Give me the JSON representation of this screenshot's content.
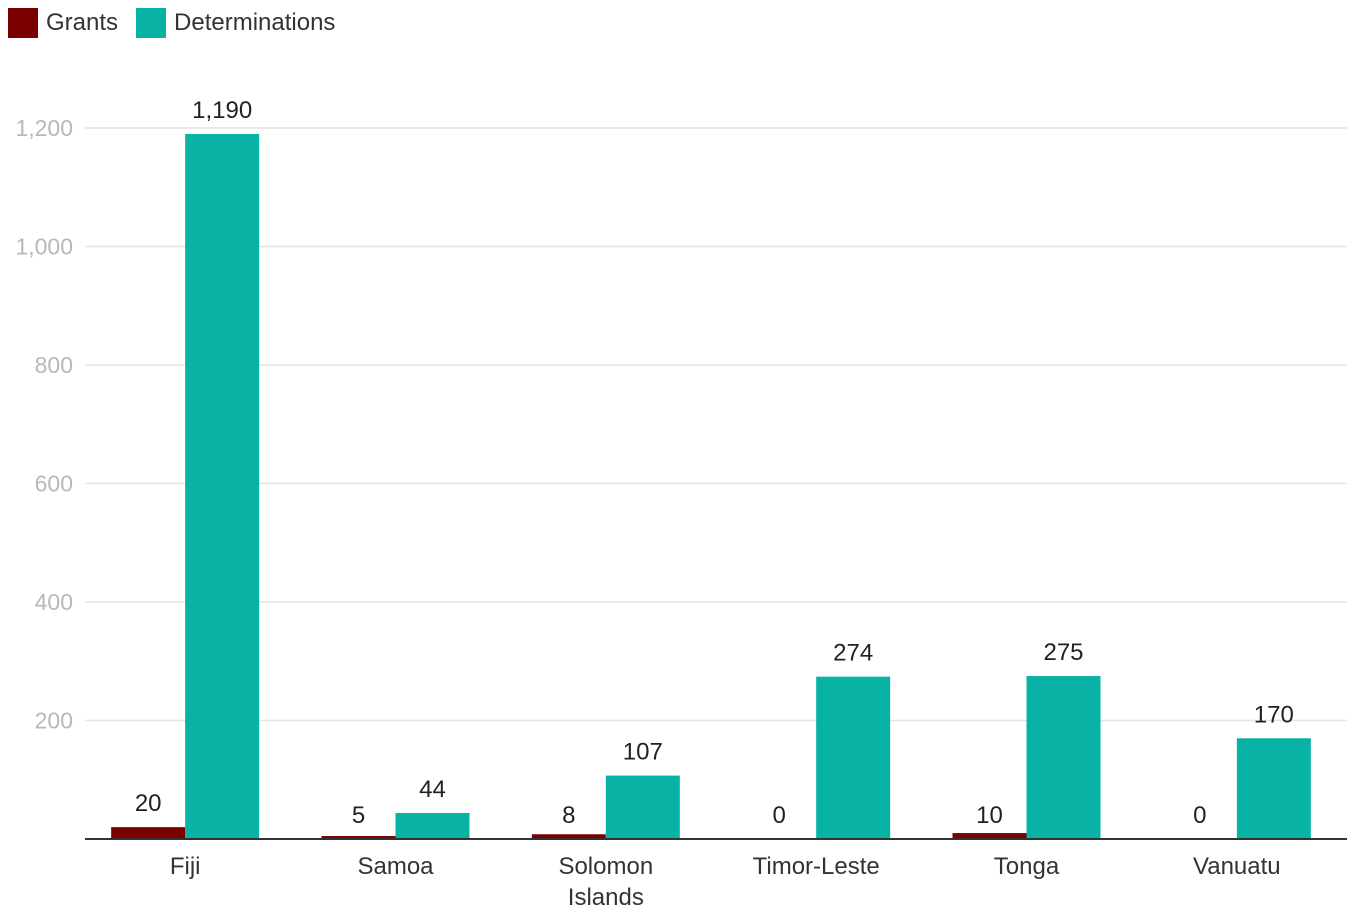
{
  "chart_data": {
    "type": "bar",
    "title": "",
    "xlabel": "",
    "ylabel": "",
    "categories": [
      [
        "Fiji"
      ],
      [
        "Samoa"
      ],
      [
        "Solomon",
        "Islands"
      ],
      [
        "Timor-Leste"
      ],
      [
        "Tonga"
      ],
      [
        "Vanuatu"
      ]
    ],
    "series": [
      {
        "name": "Grants",
        "color": "#7a0000",
        "values": [
          20,
          5,
          8,
          0,
          10,
          0
        ],
        "labels": [
          "20",
          "5",
          "8",
          "0",
          "10",
          "0"
        ]
      },
      {
        "name": "Determinations",
        "color": "#08b3a6",
        "values": [
          1190,
          44,
          107,
          274,
          275,
          170
        ],
        "labels": [
          "1,190",
          "44",
          "107",
          "274",
          "275",
          "170"
        ]
      }
    ],
    "ylim": [
      0,
      1200
    ],
    "yticks": [
      200,
      400,
      600,
      800,
      1000,
      1200
    ],
    "ytick_labels": [
      "200",
      "400",
      "600",
      "800",
      "1,000",
      "1,200"
    ],
    "grid": true,
    "legend_position": "top-left"
  }
}
